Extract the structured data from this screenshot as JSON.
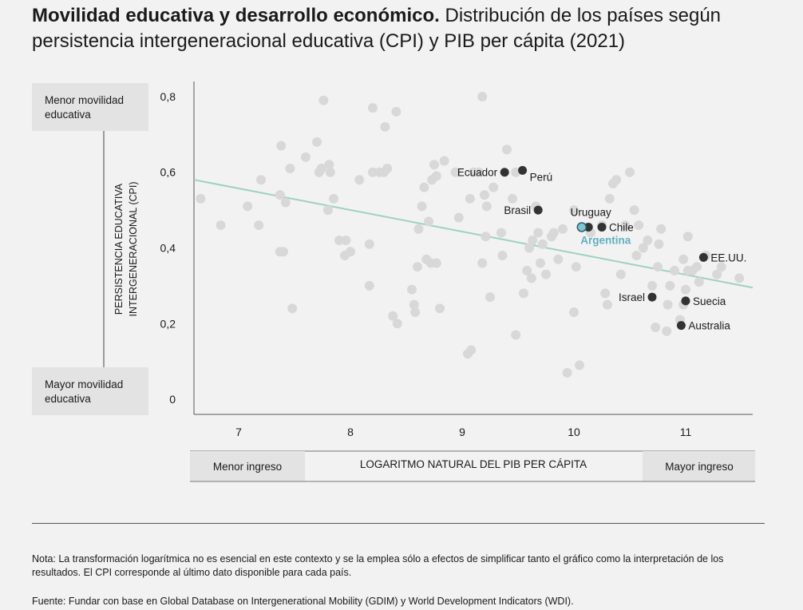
{
  "header": {
    "title_bold": "Movilidad educativa y desarrollo económico.",
    "title_rest": "Distribución de los países según persistencia intergeneracional educativa (CPI) y PIB per cápita (2021)"
  },
  "chart_data": {
    "type": "scatter",
    "xlabel": "LOGARITMO NATURAL DEL PIB PER CÁPITA",
    "ylabel_line1": "PERSISTENCIA EDUCATIVA",
    "ylabel_line2": "INTERGENERACIONAL (CPI)",
    "y_top_label_line1": "Menor movilidad",
    "y_top_label_line2": "educativa",
    "y_bottom_label_line1": "Mayor movilidad",
    "y_bottom_label_line2": "educativa",
    "x_left_label": "Menor ingreso",
    "x_right_label": "Mayor ingreso",
    "xlim": [
      6.6,
      11.6
    ],
    "ylim": [
      -0.04,
      0.84
    ],
    "x_ticks": [
      7,
      8,
      9,
      10,
      11
    ],
    "x_tick_labels": [
      "7",
      "8",
      "9",
      "10",
      "11"
    ],
    "y_ticks": [
      0,
      0.2,
      0.4,
      0.6,
      0.8
    ],
    "y_tick_labels": [
      "0",
      "0,2",
      "0,4",
      "0,6",
      "0,8"
    ],
    "grid": false,
    "trendline": {
      "x": [
        6.6,
        11.6
      ],
      "y": [
        0.58,
        0.295
      ],
      "color": "#9bd3bf"
    },
    "colors": {
      "others": "#d8d8d8",
      "highlight": "#333333",
      "argentina": "#7fc6d4"
    },
    "highlighted": [
      {
        "label": "Ecuador",
        "x": 9.38,
        "y": 0.6,
        "label_side": "left"
      },
      {
        "label": "Perú",
        "x": 9.54,
        "y": 0.605,
        "label_side": "below-right"
      },
      {
        "label": "Brasil",
        "x": 9.68,
        "y": 0.5,
        "label_side": "left"
      },
      {
        "label": "Uruguay",
        "x": 10.13,
        "y": 0.455,
        "label_side": "above"
      },
      {
        "label": "Chile",
        "x": 10.25,
        "y": 0.455,
        "label_side": "right"
      },
      {
        "label": "Argentina",
        "x": 10.07,
        "y": 0.455,
        "label_side": "below",
        "color": "argentina"
      },
      {
        "label": "EE.UU.",
        "x": 11.16,
        "y": 0.375,
        "label_side": "right"
      },
      {
        "label": "Israel",
        "x": 10.7,
        "y": 0.27,
        "label_side": "left"
      },
      {
        "label": "Suecia",
        "x": 11.0,
        "y": 0.26,
        "label_side": "right"
      },
      {
        "label": "Australia",
        "x": 10.96,
        "y": 0.195,
        "label_side": "right"
      }
    ],
    "others": [
      [
        6.66,
        0.53
      ],
      [
        6.84,
        0.46
      ],
      [
        7.08,
        0.51
      ],
      [
        7.18,
        0.46
      ],
      [
        7.2,
        0.58
      ],
      [
        7.37,
        0.54
      ],
      [
        7.37,
        0.39
      ],
      [
        7.4,
        0.39
      ],
      [
        7.38,
        0.67
      ],
      [
        7.42,
        0.52
      ],
      [
        7.46,
        0.61
      ],
      [
        7.6,
        0.64
      ],
      [
        7.48,
        0.24
      ],
      [
        7.7,
        0.68
      ],
      [
        7.74,
        0.61
      ],
      [
        7.72,
        0.6
      ],
      [
        7.76,
        0.79
      ],
      [
        7.8,
        0.5
      ],
      [
        7.81,
        0.62
      ],
      [
        7.82,
        0.6
      ],
      [
        7.85,
        0.53
      ],
      [
        7.9,
        0.42
      ],
      [
        7.95,
        0.38
      ],
      [
        7.96,
        0.42
      ],
      [
        8.0,
        0.39
      ],
      [
        8.08,
        0.58
      ],
      [
        8.17,
        0.41
      ],
      [
        8.17,
        0.3
      ],
      [
        8.2,
        0.77
      ],
      [
        8.2,
        0.6
      ],
      [
        8.26,
        0.6
      ],
      [
        8.3,
        0.6
      ],
      [
        8.31,
        0.72
      ],
      [
        8.33,
        0.61
      ],
      [
        8.41,
        0.76
      ],
      [
        8.38,
        0.22
      ],
      [
        8.42,
        0.2
      ],
      [
        8.55,
        0.29
      ],
      [
        8.57,
        0.25
      ],
      [
        8.58,
        0.23
      ],
      [
        8.6,
        0.35
      ],
      [
        8.61,
        0.45
      ],
      [
        8.64,
        0.51
      ],
      [
        8.66,
        0.56
      ],
      [
        8.68,
        0.37
      ],
      [
        8.72,
        0.36
      ],
      [
        8.7,
        0.47
      ],
      [
        8.73,
        0.58
      ],
      [
        8.75,
        0.62
      ],
      [
        8.77,
        0.36
      ],
      [
        8.77,
        0.59
      ],
      [
        8.8,
        0.24
      ],
      [
        8.84,
        0.63
      ],
      [
        8.94,
        0.6
      ],
      [
        8.97,
        0.48
      ],
      [
        9.05,
        0.12
      ],
      [
        9.08,
        0.13
      ],
      [
        9.07,
        0.53
      ],
      [
        9.1,
        0.6
      ],
      [
        9.15,
        0.6
      ],
      [
        9.18,
        0.8
      ],
      [
        9.18,
        0.36
      ],
      [
        9.2,
        0.54
      ],
      [
        9.21,
        0.43
      ],
      [
        9.22,
        0.51
      ],
      [
        9.25,
        0.27
      ],
      [
        9.28,
        0.56
      ],
      [
        9.35,
        0.44
      ],
      [
        9.36,
        0.38
      ],
      [
        9.4,
        0.66
      ],
      [
        9.45,
        0.53
      ],
      [
        9.48,
        0.17
      ],
      [
        9.48,
        0.6
      ],
      [
        9.55,
        0.28
      ],
      [
        9.58,
        0.34
      ],
      [
        9.6,
        0.4
      ],
      [
        9.62,
        0.32
      ],
      [
        9.63,
        0.42
      ],
      [
        9.66,
        0.51
      ],
      [
        9.68,
        0.44
      ],
      [
        9.7,
        0.36
      ],
      [
        9.72,
        0.41
      ],
      [
        9.75,
        0.33
      ],
      [
        9.8,
        0.43
      ],
      [
        9.82,
        0.44
      ],
      [
        9.86,
        0.37
      ],
      [
        9.9,
        0.45
      ],
      [
        9.94,
        0.07
      ],
      [
        10.0,
        0.23
      ],
      [
        10.0,
        0.5
      ],
      [
        10.02,
        0.35
      ],
      [
        10.05,
        0.09
      ],
      [
        10.15,
        0.44
      ],
      [
        10.25,
        0.46
      ],
      [
        10.28,
        0.28
      ],
      [
        10.3,
        0.25
      ],
      [
        10.32,
        0.53
      ],
      [
        10.35,
        0.57
      ],
      [
        10.38,
        0.58
      ],
      [
        10.42,
        0.33
      ],
      [
        10.46,
        0.46
      ],
      [
        10.5,
        0.6
      ],
      [
        10.54,
        0.5
      ],
      [
        10.56,
        0.38
      ],
      [
        10.58,
        0.46
      ],
      [
        10.62,
        0.4
      ],
      [
        10.66,
        0.42
      ],
      [
        10.7,
        0.3
      ],
      [
        10.73,
        0.19
      ],
      [
        10.75,
        0.35
      ],
      [
        10.76,
        0.41
      ],
      [
        10.78,
        0.45
      ],
      [
        10.83,
        0.18
      ],
      [
        10.84,
        0.25
      ],
      [
        10.86,
        0.3
      ],
      [
        10.9,
        0.34
      ],
      [
        10.95,
        0.21
      ],
      [
        10.98,
        0.25
      ],
      [
        10.98,
        0.37
      ],
      [
        11.0,
        0.29
      ],
      [
        11.02,
        0.43
      ],
      [
        11.02,
        0.34
      ],
      [
        11.06,
        0.34
      ],
      [
        11.1,
        0.35
      ],
      [
        11.12,
        0.31
      ],
      [
        11.18,
        0.38
      ],
      [
        11.28,
        0.33
      ],
      [
        11.32,
        0.35
      ],
      [
        11.48,
        0.32
      ]
    ]
  },
  "footer": {
    "note": "Nota: La transformación logarítmica no es esencial en este contexto y se la emplea sólo a efectos de simplificar tanto el gráfico como la interpretación de los resultados. El CPI corresponde al último dato disponible para cada país.",
    "source": "Fuente: Fundar con base en Global Database on Intergenerational Mobility (GDIM) y World Development Indicators (WDI)."
  }
}
